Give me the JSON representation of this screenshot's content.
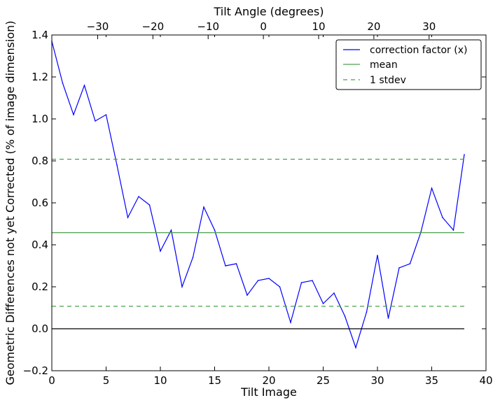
{
  "chart_data": {
    "type": "line",
    "title": "",
    "xlabel": "Tilt Image",
    "ylabel": "Geometric Differences not yet Corrected (% of image dimension)",
    "top_xlabel": "Tilt Angle (degrees)",
    "xlim": [
      0,
      40
    ],
    "ylim": [
      -0.2,
      1.4
    ],
    "top_xlim": [
      -38.3,
      40.3
    ],
    "x_ticks": [
      0,
      5,
      10,
      15,
      20,
      25,
      30,
      35,
      40
    ],
    "x_tick_labels": [
      "0",
      "5",
      "10",
      "15",
      "20",
      "25",
      "30",
      "35",
      "40"
    ],
    "y_ticks": [
      -0.2,
      0.0,
      0.2,
      0.4,
      0.6,
      0.8,
      1.0,
      1.2,
      1.4
    ],
    "y_tick_labels": [
      "−0.2",
      "0.0",
      "0.2",
      "0.4",
      "0.6",
      "0.8",
      "1.0",
      "1.2",
      "1.4"
    ],
    "top_ticks": [
      -30,
      -20,
      -10,
      0,
      10,
      20,
      30
    ],
    "top_tick_labels": [
      "−30",
      "−20",
      "−10",
      "0",
      "10",
      "20",
      "30"
    ],
    "grid": false,
    "legend_position": "top-right",
    "series": [
      {
        "name": "correction factor (x)",
        "style": "solid",
        "color": "#0000ff",
        "x": [
          0,
          1,
          2,
          3,
          4,
          5,
          6,
          7,
          8,
          9,
          10,
          11,
          12,
          13,
          14,
          15,
          16,
          17,
          18,
          19,
          20,
          21,
          22,
          23,
          24,
          25,
          26,
          27,
          28,
          29,
          30,
          31,
          32,
          33,
          34,
          35,
          36,
          37,
          38
        ],
        "y": [
          1.37,
          1.17,
          1.02,
          1.16,
          0.99,
          1.02,
          0.78,
          0.53,
          0.63,
          0.59,
          0.37,
          0.47,
          0.2,
          0.34,
          0.58,
          0.47,
          0.3,
          0.31,
          0.16,
          0.23,
          0.24,
          0.2,
          0.03,
          0.22,
          0.23,
          0.12,
          0.17,
          0.06,
          -0.09,
          0.08,
          0.35,
          0.05,
          0.29,
          0.31,
          0.46,
          0.67,
          0.53,
          0.47,
          0.83
        ]
      },
      {
        "name": "mean",
        "style": "solid",
        "color": "#4aa04a",
        "x": [
          0,
          38
        ],
        "y": [
          0.458,
          0.458
        ]
      },
      {
        "name": "1 stdev",
        "style": "dashed",
        "color": "#4aa04a",
        "x": [
          0,
          38
        ],
        "y": [
          0.808,
          0.808
        ]
      },
      {
        "name": "",
        "style": "dashed",
        "color": "#4aa04a",
        "x": [
          0,
          38
        ],
        "y": [
          0.107,
          0.107
        ]
      },
      {
        "name": "",
        "style": "solid",
        "color": "#000000",
        "x": [
          0,
          38
        ],
        "y": [
          0.0,
          0.0
        ]
      }
    ],
    "legend": [
      "correction factor (x)",
      "mean",
      "1 stdev"
    ]
  }
}
